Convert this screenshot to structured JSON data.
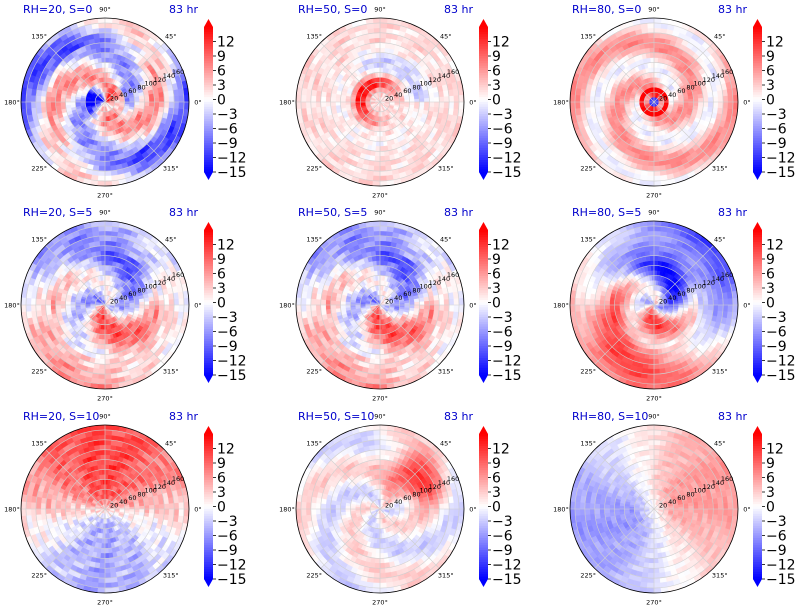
{
  "chart_data": {
    "type": "heatmap",
    "projection": "polar",
    "layout": "3x3 grid",
    "colormap": "bwr",
    "color_range": [
      -15,
      15
    ],
    "colorbar_ticks": [
      "12",
      "9",
      "6",
      "3",
      "0",
      "−3",
      "−6",
      "−9",
      "−12",
      "−15"
    ],
    "angle_tick_labels": [
      "0°",
      "45°",
      "90°",
      "135°",
      "180°",
      "225°",
      "270°",
      "315°"
    ],
    "radial_tick_labels": [
      "20",
      "40",
      "60",
      "80",
      "100",
      "120",
      "140",
      "160"
    ],
    "radial_range": [
      0,
      170
    ],
    "panels": [
      {
        "title": "RH=20, S=0",
        "time_label": "83 hr",
        "pattern": "spiral"
      },
      {
        "title": "RH=50, S=0",
        "time_label": "83 hr",
        "pattern": "ring"
      },
      {
        "title": "RH=80, S=0",
        "time_label": "83 hr",
        "pattern": "eyewall"
      },
      {
        "title": "RH=20, S=5",
        "time_label": "83 hr",
        "pattern": "spiral-south"
      },
      {
        "title": "RH=50, S=5",
        "time_label": "83 hr",
        "pattern": "spiral-south"
      },
      {
        "title": "RH=80, S=5",
        "time_label": "83 hr",
        "pattern": "dipole-ne-blue"
      },
      {
        "title": "RH=20, S=10",
        "time_label": "83 hr",
        "pattern": "dipole-north-red"
      },
      {
        "title": "RH=50, S=10",
        "time_label": "83 hr",
        "pattern": "northeast-cluster"
      },
      {
        "title": "RH=80, S=10",
        "time_label": "83 hr",
        "pattern": "dipole-east-red"
      }
    ]
  }
}
